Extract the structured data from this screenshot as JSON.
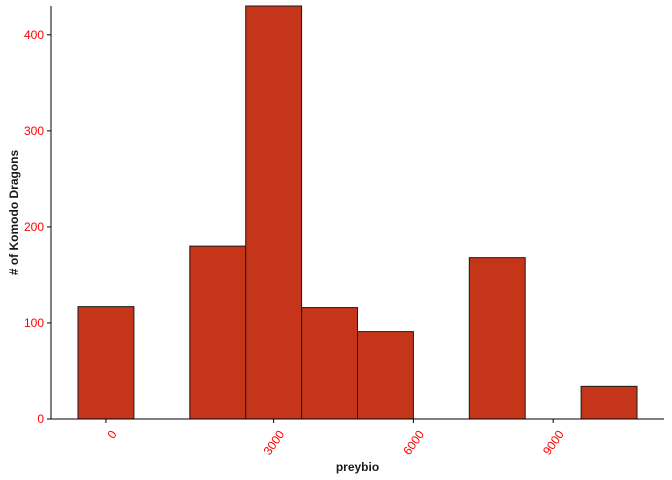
{
  "chart_data": {
    "type": "bar",
    "subtype": "histogram",
    "xlabel": "preybio",
    "ylabel": "# of Komodo Dragons",
    "bin_width": 1500,
    "bins": [
      {
        "x_start": -750,
        "x_end": 750,
        "count": 117
      },
      {
        "x_start": 750,
        "x_end": 2250,
        "count": 0
      },
      {
        "x_start": 2250,
        "x_end": 3750,
        "count": 180
      },
      {
        "x_start": 3750,
        "x_end": 5250,
        "count": 430
      },
      {
        "x_start": 5250,
        "x_end": 6750,
        "count": 116
      },
      {
        "x_start": 6750,
        "x_end": 8250,
        "count": 91
      },
      {
        "x_start": 8250,
        "x_end": 9750,
        "count": 0
      },
      {
        "x_start": 9750,
        "x_end": 11250,
        "count": 168
      },
      {
        "x_start": 11250,
        "x_end": 12750,
        "count": 0
      },
      {
        "x_start": 12750,
        "x_end": 14250,
        "count": 34
      }
    ],
    "x_ticks": [
      {
        "value": 0,
        "label": "0"
      },
      {
        "value": 3000,
        "label": "3000"
      },
      {
        "value": 6000,
        "label": "6000"
      },
      {
        "value": 9000,
        "label": "9000"
      }
    ],
    "y_ticks": [
      {
        "value": 0,
        "label": "0"
      },
      {
        "value": 100,
        "label": "100"
      },
      {
        "value": 200,
        "label": "200"
      },
      {
        "value": 300,
        "label": "300"
      },
      {
        "value": 400,
        "label": "400"
      }
    ],
    "x_tick_map": [
      {
        "label_value": 0,
        "axis_value": 0
      },
      {
        "label_value": 3000,
        "axis_value": 4500
      },
      {
        "label_value": 6000,
        "axis_value": 8250
      },
      {
        "label_value": 9000,
        "axis_value": 12000
      }
    ],
    "xlim": [
      -750,
      14250
    ],
    "ylim": [
      0,
      430
    ],
    "grid": false,
    "legend": "none",
    "colors": {
      "bar_fill": "#c4351a",
      "bar_stroke": "#1a1a1a",
      "tick_label": "#ff0000",
      "axis_line": "#000000"
    }
  }
}
